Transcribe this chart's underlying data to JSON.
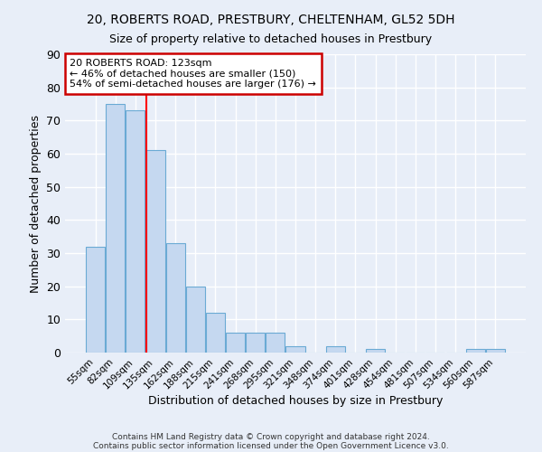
{
  "title1": "20, ROBERTS ROAD, PRESTBURY, CHELTENHAM, GL52 5DH",
  "title2": "Size of property relative to detached houses in Prestbury",
  "xlabel": "Distribution of detached houses by size in Prestbury",
  "ylabel": "Number of detached properties",
  "categories": [
    "55sqm",
    "82sqm",
    "109sqm",
    "135sqm",
    "162sqm",
    "188sqm",
    "215sqm",
    "241sqm",
    "268sqm",
    "295sqm",
    "321sqm",
    "348sqm",
    "374sqm",
    "401sqm",
    "428sqm",
    "454sqm",
    "481sqm",
    "507sqm",
    "534sqm",
    "560sqm",
    "587sqm"
  ],
  "values": [
    32,
    75,
    73,
    61,
    33,
    20,
    12,
    6,
    6,
    6,
    2,
    0,
    2,
    0,
    1,
    0,
    0,
    0,
    0,
    1,
    1
  ],
  "bar_color": "#c5d8f0",
  "bar_edge_color": "#6aaad4",
  "annotation_title": "20 ROBERTS ROAD: 123sqm",
  "annotation_line1": "← 46% of detached houses are smaller (150)",
  "annotation_line2": "54% of semi-detached houses are larger (176) →",
  "annotation_box_color": "#ffffff",
  "annotation_box_edge": "#cc0000",
  "footer1": "Contains HM Land Registry data © Crown copyright and database right 2024.",
  "footer2": "Contains public sector information licensed under the Open Government Licence v3.0.",
  "ylim": [
    0,
    90
  ],
  "yticks": [
    0,
    10,
    20,
    30,
    40,
    50,
    60,
    70,
    80,
    90
  ],
  "background_color": "#e8eef8",
  "grid_color": "#ffffff"
}
